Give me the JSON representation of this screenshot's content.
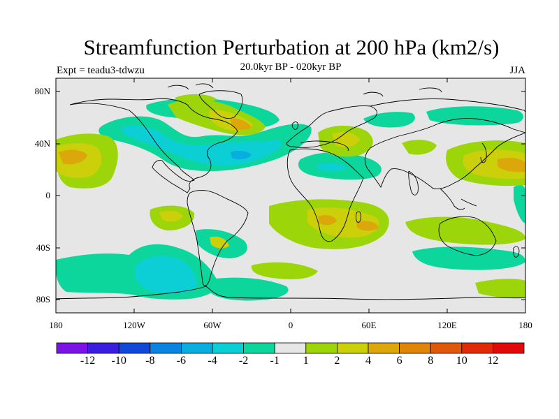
{
  "title": "Streamfunction Perturbation at 200 hPa (km2/s)",
  "subtitle": "20.0kyr BP - 020kyr BP",
  "expt": "Expt = teadu3-tdwzu",
  "season": "JJA",
  "lat_labels": [
    "80N",
    "40N",
    "0",
    "40S",
    "80S"
  ],
  "lon_labels": [
    "180",
    "120W",
    "60W",
    "0",
    "60E",
    "120E",
    "180"
  ],
  "colorbar": {
    "labels": [
      "-12",
      "-10",
      "-8",
      "-6",
      "-4",
      "-2",
      "-1",
      "1",
      "2",
      "4",
      "6",
      "8",
      "10",
      "12"
    ],
    "colors": [
      "#7a13e3",
      "#3a1ee0",
      "#1048d8",
      "#0a84e0",
      "#09aee0",
      "#0ccfd6",
      "#0cd69c",
      "#e6e6e6",
      "#9cd60a",
      "#ccd00a",
      "#dca70a",
      "#e0840a",
      "#e0580a",
      "#e02a0a",
      "#e00a0a"
    ]
  },
  "colors": {
    "ocean": "#e6e6e6",
    "neg1": "#0cd69c",
    "neg2": "#0ccfd6",
    "neg3": "#09aee0",
    "pos1": "#9cd60a",
    "pos2": "#ccd00a",
    "pos3": "#dca70a"
  }
}
